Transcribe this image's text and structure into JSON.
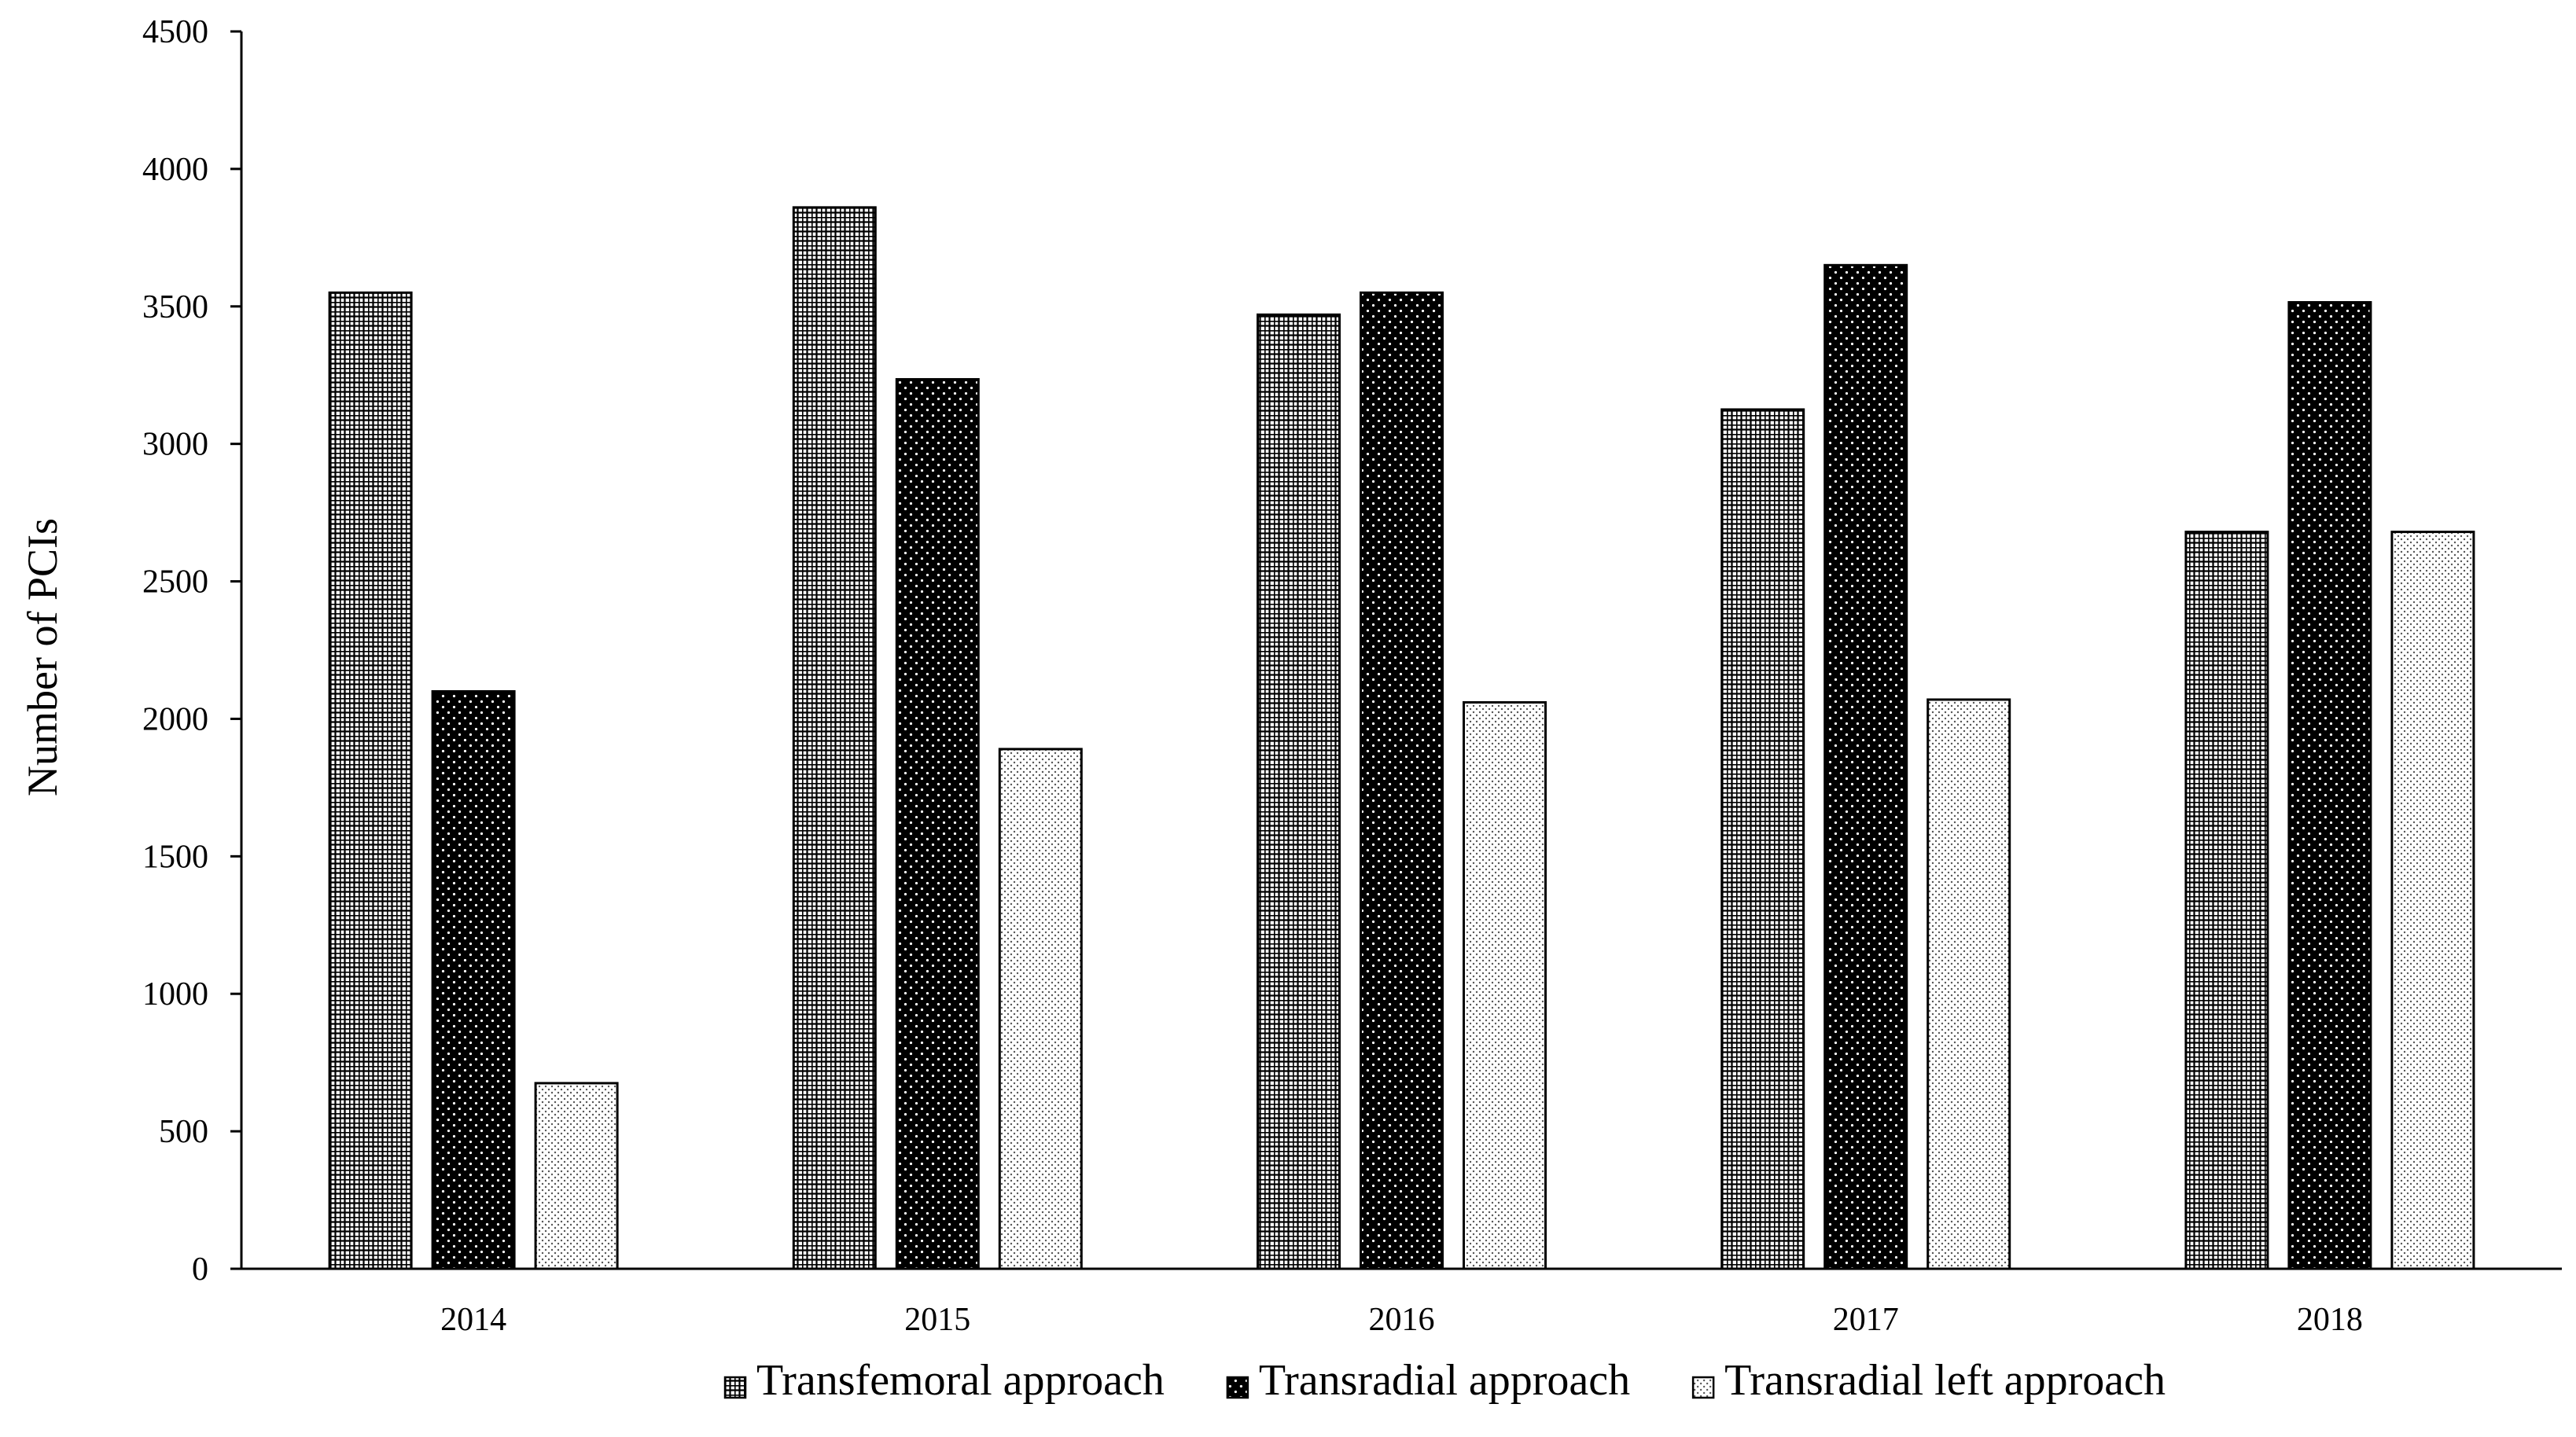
{
  "chart_data": {
    "type": "bar",
    "title": "",
    "xlabel": "",
    "ylabel": "Number of PCIs",
    "ylim": [
      0,
      4500
    ],
    "yticks": [
      0,
      500,
      1000,
      1500,
      2000,
      2500,
      3000,
      3500,
      4000,
      4500
    ],
    "categories": [
      "2014",
      "2015",
      "2016",
      "2017",
      "2018"
    ],
    "series": [
      {
        "name": "Transfemoral approach",
        "pattern": "grid",
        "values": [
          3550,
          3860,
          3470,
          3125,
          2680
        ]
      },
      {
        "name": "Transradial approach",
        "pattern": "dots-on-black",
        "values": [
          2100,
          3235,
          3550,
          3650,
          3515
        ]
      },
      {
        "name": "Transradial left approach",
        "pattern": "fine-dots",
        "values": [
          675,
          1890,
          2060,
          2070,
          2680
        ]
      }
    ],
    "legend_position": "bottom",
    "grid": false,
    "colors": {
      "axis": "#000000",
      "bar_stroke": "#000000",
      "background": "#ffffff"
    }
  }
}
